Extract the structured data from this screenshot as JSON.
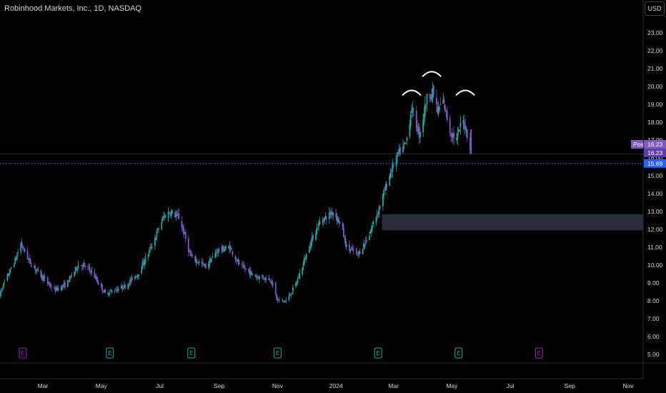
{
  "header": {
    "title": "Robinhood Markets, Inc., 1D, NASDAQ",
    "currency": "USD"
  },
  "colors": {
    "background": "#000000",
    "up": "#26a69a",
    "down": "#7e57c2",
    "post_tag": "#7e57c2",
    "last_price_tag": "#5c3fa8",
    "dotted_line": "#2962ff",
    "zone": "#2a2e39",
    "axis_text": "#d1d4dc"
  },
  "chart_data": {
    "type": "candlestick",
    "title": "Robinhood Markets, Inc., 1D, NASDAQ",
    "y_ticks": [
      "23.00",
      "22.00",
      "21.00",
      "20.00",
      "19.00",
      "18.00",
      "17.00",
      "16.00",
      "15.00",
      "14.00",
      "13.00",
      "12.00",
      "11.00",
      "10.00",
      "9.00",
      "8.00",
      "7.00",
      "6.00",
      "5.00"
    ],
    "ylim": [
      5,
      23
    ],
    "x_ticks": [
      "Mar",
      "May",
      "Jul",
      "Sep",
      "Nov",
      "2024",
      "Mar",
      "May",
      "Jul",
      "Sep",
      "Nov"
    ],
    "x_tick_dates": [
      "2023-03-01",
      "2023-05-01",
      "2023-07-01",
      "2023-09-01",
      "2023-11-01",
      "2024-01-01",
      "2024-03-01",
      "2024-05-01",
      "2024-07-01",
      "2024-09-01",
      "2024-11-01"
    ],
    "price_path": [
      [
        "2023-01-12",
        8.1
      ],
      [
        "2023-02-01",
        10.4
      ],
      [
        "2023-02-06",
        11.2
      ],
      [
        "2023-02-15",
        10.2
      ],
      [
        "2023-03-01",
        9.3
      ],
      [
        "2023-03-13",
        8.6
      ],
      [
        "2023-03-25",
        8.9
      ],
      [
        "2023-04-08",
        10.1
      ],
      [
        "2023-04-20",
        9.7
      ],
      [
        "2023-05-05",
        8.4
      ],
      [
        "2023-05-25",
        8.8
      ],
      [
        "2023-06-08",
        9.5
      ],
      [
        "2023-06-22",
        11.0
      ],
      [
        "2023-07-05",
        12.7
      ],
      [
        "2023-07-12",
        13.0
      ],
      [
        "2023-07-22",
        12.6
      ],
      [
        "2023-08-02",
        10.5
      ],
      [
        "2023-08-18",
        9.9
      ],
      [
        "2023-08-30",
        10.8
      ],
      [
        "2023-09-12",
        11.0
      ],
      [
        "2023-09-22",
        10.0
      ],
      [
        "2023-10-08",
        9.4
      ],
      [
        "2023-10-25",
        9.2
      ],
      [
        "2023-11-01",
        8.0
      ],
      [
        "2023-11-10",
        8.0
      ],
      [
        "2023-11-20",
        8.9
      ],
      [
        "2023-12-05",
        11.2
      ],
      [
        "2023-12-15",
        12.4
      ],
      [
        "2023-12-29",
        13.0
      ],
      [
        "2024-01-06",
        12.3
      ],
      [
        "2024-01-12",
        11.0
      ],
      [
        "2024-01-24",
        10.6
      ],
      [
        "2024-02-04",
        11.6
      ],
      [
        "2024-02-15",
        13.2
      ],
      [
        "2024-02-27",
        15.2
      ],
      [
        "2024-03-06",
        16.2
      ],
      [
        "2024-03-14",
        16.8
      ],
      [
        "2024-03-20",
        18.8
      ],
      [
        "2024-03-28",
        17.3
      ],
      [
        "2024-04-06",
        19.6
      ],
      [
        "2024-04-12",
        19.6
      ],
      [
        "2024-04-16",
        18.6
      ],
      [
        "2024-04-22",
        19.2
      ],
      [
        "2024-04-29",
        17.5
      ],
      [
        "2024-05-06",
        17.0
      ],
      [
        "2024-05-12",
        18.2
      ],
      [
        "2024-05-16",
        17.6
      ],
      [
        "2024-05-21",
        16.3
      ]
    ],
    "horizontal_lines": [
      {
        "price": 16.23,
        "style": "solid"
      },
      {
        "price": 15.69,
        "style": "dotted"
      }
    ],
    "zone": {
      "from_date": "2024-02-18",
      "y_low": 11.95,
      "y_high": 12.85
    },
    "annotations": [
      {
        "type": "arc",
        "date": "2024-03-20",
        "price": 19.7
      },
      {
        "type": "arc",
        "date": "2024-04-10",
        "price": 20.75
      },
      {
        "type": "arc",
        "date": "2024-05-15",
        "price": 19.7
      }
    ],
    "price_tags": [
      {
        "label": "Post",
        "value": "16.23"
      },
      {
        "value": "16.23"
      },
      {
        "value": "15.69"
      }
    ],
    "earnings_markers": [
      {
        "date": "2023-02-08",
        "label": "E",
        "color": "#9c27b0"
      },
      {
        "date": "2023-05-10",
        "label": "E",
        "color": "#26a69a"
      },
      {
        "date": "2023-08-03",
        "label": "E",
        "color": "#26a69a"
      },
      {
        "date": "2023-11-01",
        "label": "E",
        "color": "#26a69a"
      },
      {
        "date": "2024-02-14",
        "label": "E",
        "color": "#26a69a"
      },
      {
        "date": "2024-05-08",
        "label": "E",
        "color": "#26a69a"
      },
      {
        "date": "2024-07-31",
        "label": "E",
        "color": "#9c27b0"
      }
    ]
  }
}
